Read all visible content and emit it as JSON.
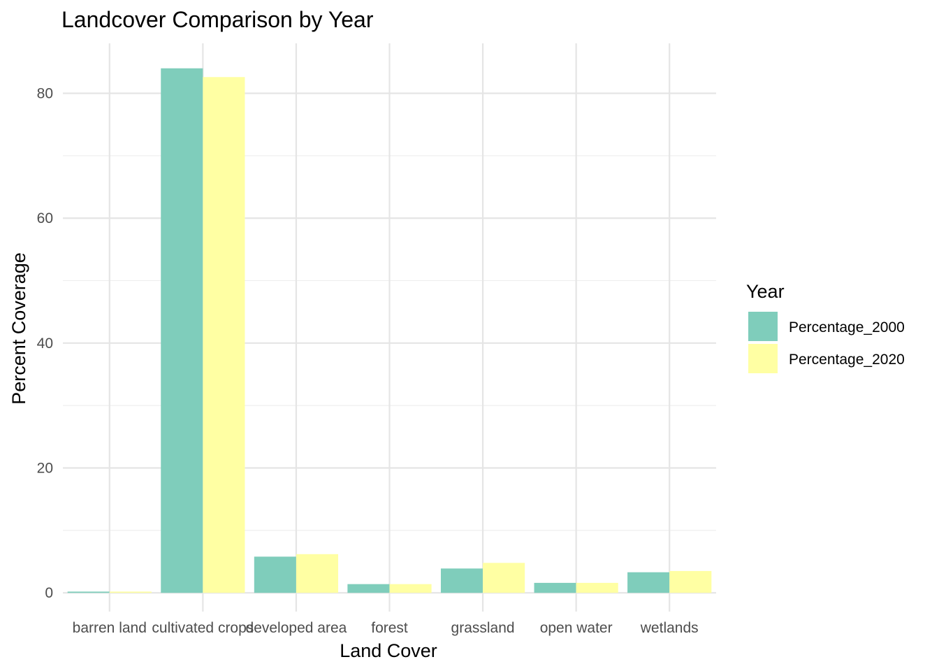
{
  "chart_data": {
    "type": "bar",
    "title": "Landcover Comparison by Year",
    "xlabel": "Land Cover",
    "ylabel": "Percent Coverage",
    "categories": [
      "barren land",
      "cultivated crops",
      "developed area",
      "forest",
      "grassland",
      "open water",
      "wetlands"
    ],
    "series": [
      {
        "name": "Percentage_2000",
        "color": "#7fcdbb",
        "values": [
          0.2,
          84.0,
          5.8,
          1.4,
          3.9,
          1.6,
          3.3
        ]
      },
      {
        "name": "Percentage_2020",
        "color": "#ffffa3",
        "values": [
          0.2,
          82.6,
          6.2,
          1.4,
          4.8,
          1.6,
          3.5
        ]
      }
    ],
    "y_ticks": [
      "0",
      "20",
      "40",
      "60",
      "80"
    ],
    "ylim": [
      -3,
      88
    ],
    "grid": true,
    "legend": {
      "title": "Year",
      "position": "right"
    }
  }
}
